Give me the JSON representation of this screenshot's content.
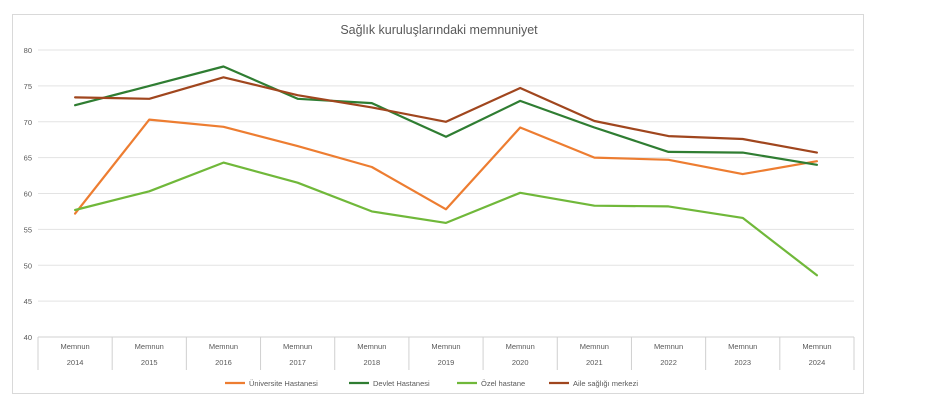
{
  "chart_data": {
    "type": "line",
    "title": "Sağlık kuruluşlarındaki memnuniyet",
    "xlabel": "",
    "ylabel": "",
    "ylim": [
      40,
      80
    ],
    "yticks": [
      40,
      45,
      50,
      55,
      60,
      65,
      70,
      75,
      80
    ],
    "grid": true,
    "legend": "bottom",
    "x_groups": {
      "inner_labels": [
        "Memnun",
        "Memnun",
        "Memnun",
        "Memnun",
        "Memnun",
        "Memnun",
        "Memnun",
        "Memnun",
        "Memnun",
        "Memnun",
        "Memnun"
      ],
      "outer_labels": [
        "2014",
        "2015",
        "2016",
        "2017",
        "2018",
        "2019",
        "2020",
        "2021",
        "2022",
        "2023",
        "2024"
      ]
    },
    "categories": [
      "2014",
      "2015",
      "2016",
      "2017",
      "2018",
      "2019",
      "2020",
      "2021",
      "2022",
      "2023",
      "2024"
    ],
    "series": [
      {
        "name": "Üniversite Hastanesi",
        "color": "#ed7d31",
        "values": [
          57.2,
          70.3,
          69.3,
          66.6,
          63.7,
          57.8,
          69.2,
          65.0,
          64.7,
          62.7,
          64.5
        ]
      },
      {
        "name": "Devlet Hastanesi",
        "color": "#2f7d32",
        "values": [
          72.3,
          75.0,
          77.7,
          73.2,
          72.6,
          67.9,
          72.9,
          69.2,
          65.8,
          65.7,
          64.0
        ]
      },
      {
        "name": "Özel hastane",
        "color": "#70b83a",
        "values": [
          57.7,
          60.3,
          64.3,
          61.5,
          57.5,
          55.9,
          60.1,
          58.3,
          58.2,
          56.6,
          48.6
        ]
      },
      {
        "name": "Aile sağlığı merkezi",
        "color": "#a0461e",
        "values": [
          73.4,
          73.2,
          76.2,
          73.7,
          72.0,
          70.0,
          74.7,
          70.1,
          68.0,
          67.6,
          65.7
        ]
      }
    ]
  }
}
